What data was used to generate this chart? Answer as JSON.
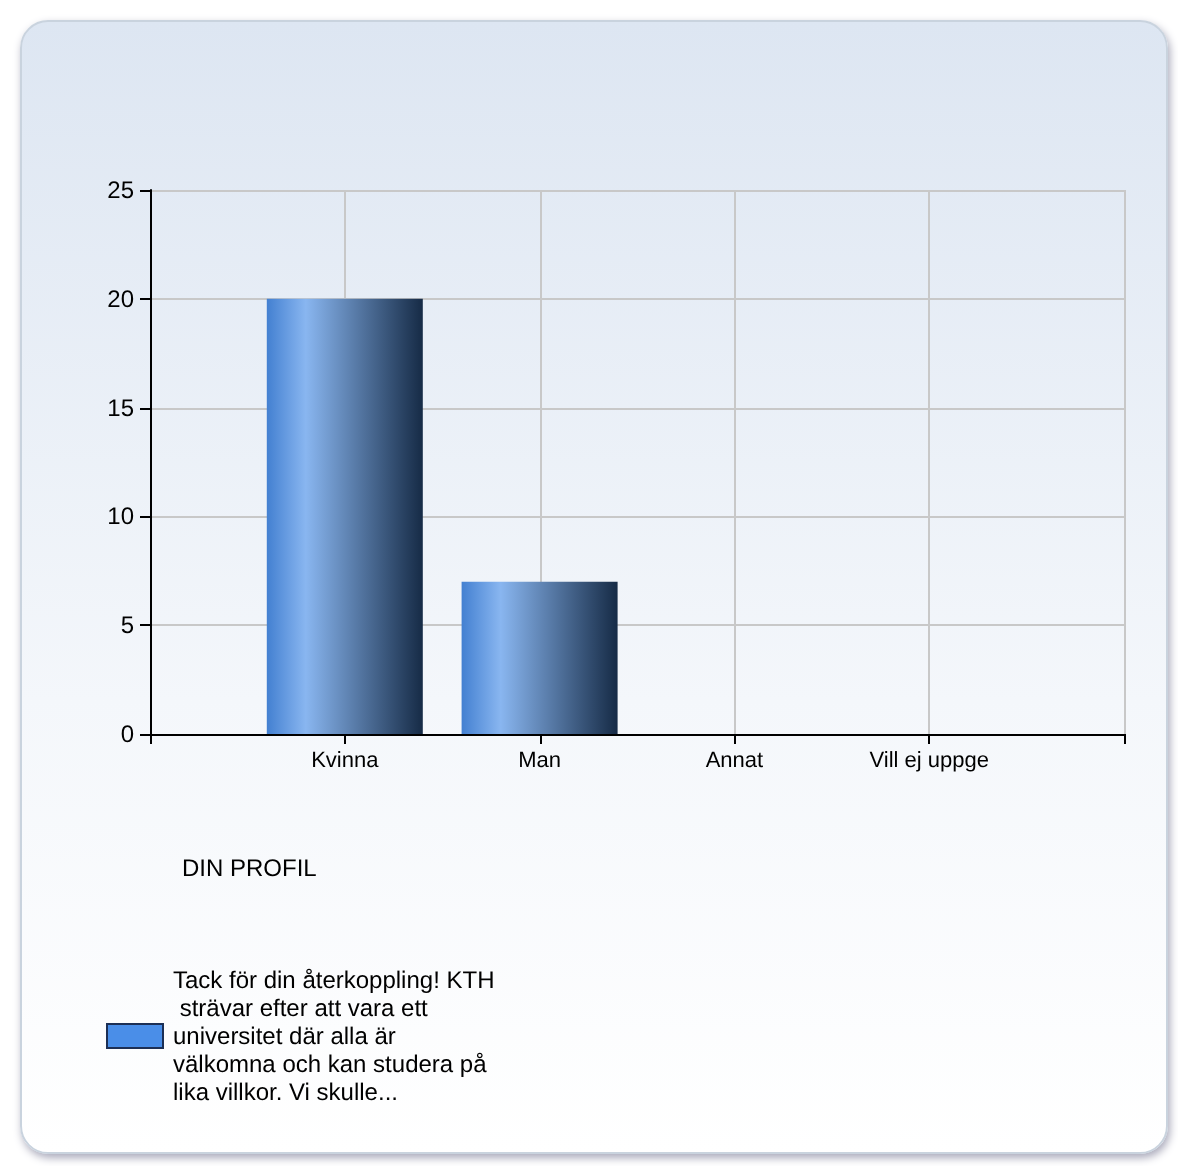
{
  "chart_data": {
    "type": "bar",
    "title": "DIN PROFIL",
    "categories": [
      "Kvinna",
      "Man",
      "Annat",
      "Vill ej uppge"
    ],
    "series": [
      {
        "name": "Tack för din återkoppling! KTH strävar efter att vara ett universitet där alla är välkomna och kan studera på lika villkor. Vi skulle...",
        "color": "#4a8ee8",
        "values": [
          20,
          7,
          0,
          0
        ]
      }
    ],
    "ylim": [
      0,
      25
    ],
    "yticks": [
      0,
      5,
      10,
      15,
      20,
      25
    ],
    "grid": true,
    "legend": "bottom left"
  }
}
